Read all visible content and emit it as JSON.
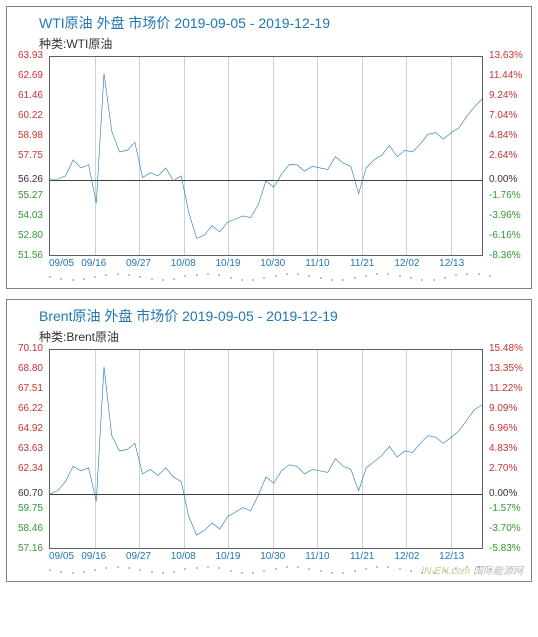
{
  "charts": [
    {
      "title": "WTI原油 外盘 市场价 2019-09-05 - 2019-12-19",
      "subtitle": "种类:WTI原油",
      "title_color": "#1f77b4",
      "line_color": "#1f77b4",
      "left_axis_color_top": "#cc3333",
      "left_axis_color_bottom": "#339933",
      "right_axis_color_top": "#cc3333",
      "right_axis_color_bottom": "#339933",
      "neutral_color": "#333333",
      "y_left": {
        "min": 51.56,
        "max": 63.93,
        "base": 56.26,
        "ticks": [
          63.93,
          62.69,
          61.46,
          60.22,
          58.98,
          57.75,
          56.26,
          55.27,
          54.03,
          52.8,
          51.56
        ]
      },
      "y_right": {
        "ticks": [
          {
            "v": "13.63%",
            "p": 63.93
          },
          {
            "v": "11.44%",
            "p": 62.69
          },
          {
            "v": "9.24%",
            "p": 61.46
          },
          {
            "v": "7.04%",
            "p": 60.22
          },
          {
            "v": "4.84%",
            "p": 58.98
          },
          {
            "v": "2.64%",
            "p": 57.75
          },
          {
            "v": "0.00%",
            "p": 56.26
          },
          {
            "v": "-1.76%",
            "p": 55.27
          },
          {
            "v": "-3.96%",
            "p": 54.03
          },
          {
            "v": "-6.16%",
            "p": 52.8
          },
          {
            "v": "-8.36%",
            "p": 51.56
          }
        ]
      },
      "x_ticks": [
        "09/05",
        "09/16",
        "09/27",
        "10/08",
        "10/19",
        "10/30",
        "11/10",
        "11/21",
        "12/02",
        "12/13"
      ],
      "series": [
        56.3,
        56.3,
        56.5,
        57.5,
        57.0,
        57.2,
        54.8,
        62.9,
        59.3,
        58.0,
        58.1,
        58.6,
        56.4,
        56.7,
        56.5,
        57.0,
        56.2,
        56.5,
        54.2,
        52.6,
        52.8,
        53.4,
        53.0,
        53.6,
        53.8,
        54.0,
        53.9,
        54.7,
        56.2,
        55.8,
        56.6,
        57.2,
        57.2,
        56.8,
        57.1,
        57.0,
        56.9,
        57.7,
        57.3,
        57.1,
        55.4,
        57.0,
        57.5,
        57.8,
        58.4,
        57.7,
        58.1,
        58.0,
        58.5,
        59.1,
        59.2,
        58.8,
        59.2,
        59.5,
        60.2,
        60.8,
        61.3
      ]
    },
    {
      "title": "Brent原油 外盘 市场价 2019-09-05 - 2019-12-19",
      "subtitle": "种类:Brent原油",
      "title_color": "#1f77b4",
      "line_color": "#1f77b4",
      "left_axis_color_top": "#cc3333",
      "left_axis_color_bottom": "#339933",
      "right_axis_color_top": "#cc3333",
      "right_axis_color_bottom": "#339933",
      "neutral_color": "#333333",
      "y_left": {
        "min": 57.16,
        "max": 70.1,
        "base": 60.7,
        "ticks": [
          70.1,
          68.8,
          67.51,
          66.22,
          64.92,
          63.63,
          62.34,
          60.7,
          59.75,
          58.46,
          57.16
        ]
      },
      "y_right": {
        "ticks": [
          {
            "v": "15.48%",
            "p": 70.1
          },
          {
            "v": "13.35%",
            "p": 68.8
          },
          {
            "v": "11.22%",
            "p": 67.51
          },
          {
            "v": "9.09%",
            "p": 66.22
          },
          {
            "v": "6.96%",
            "p": 64.92
          },
          {
            "v": "4.83%",
            "p": 63.63
          },
          {
            "v": "2.70%",
            "p": 62.34
          },
          {
            "v": "0.00%",
            "p": 60.7
          },
          {
            "v": "-1.57%",
            "p": 59.75
          },
          {
            "v": "-3.70%",
            "p": 58.46
          },
          {
            "v": "-5.83%",
            "p": 57.16
          }
        ]
      },
      "x_ticks": [
        "09/05",
        "09/16",
        "09/27",
        "10/08",
        "10/19",
        "10/30",
        "11/10",
        "11/21",
        "12/02",
        "12/13"
      ],
      "series": [
        60.7,
        60.9,
        61.5,
        62.5,
        62.2,
        62.4,
        60.2,
        69.0,
        64.5,
        63.5,
        63.6,
        64.0,
        62.0,
        62.3,
        61.9,
        62.4,
        61.8,
        61.5,
        59.2,
        58.0,
        58.3,
        58.8,
        58.4,
        59.2,
        59.5,
        59.8,
        59.6,
        60.6,
        61.8,
        61.4,
        62.2,
        62.6,
        62.5,
        62.0,
        62.3,
        62.2,
        62.1,
        63.0,
        62.5,
        62.3,
        60.9,
        62.4,
        62.8,
        63.2,
        63.8,
        63.1,
        63.5,
        63.4,
        64.0,
        64.5,
        64.4,
        64.0,
        64.4,
        64.8,
        65.5,
        66.2,
        66.5
      ]
    }
  ],
  "watermark": {
    "brand": "IN-EN.com",
    "cn": "国际能源网"
  }
}
